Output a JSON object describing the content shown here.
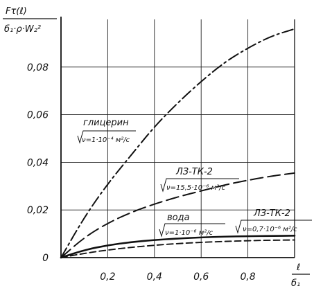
{
  "chart_data": {
    "type": "line",
    "ylabel": {
      "numerator": "Fτ(ℓ)",
      "denominator": "б₁·ρ·W₂²"
    },
    "xlabel": {
      "numerator": "ℓ",
      "denominator": "б₁"
    },
    "xlim": [
      0,
      1.0
    ],
    "ylim": [
      0,
      0.1
    ],
    "xticks": [
      "0,2",
      "0,4",
      "0,6",
      "0,8"
    ],
    "xtick_values": [
      0.2,
      0.4,
      0.6,
      0.8
    ],
    "yticks": [
      "0",
      "0,02",
      "0,04",
      "0,06",
      "0,08"
    ],
    "ytick_values": [
      0,
      0.02,
      0.04,
      0.06,
      0.08
    ],
    "grid": true,
    "series": [
      {
        "name": "глицерин",
        "sublabel": "ν=1·10⁻⁴ м²/с",
        "style": "dash-dot",
        "x": [
          0,
          0.1,
          0.2,
          0.3,
          0.4,
          0.5,
          0.6,
          0.7,
          0.8,
          0.9,
          1.0
        ],
        "y": [
          0,
          0.017,
          0.031,
          0.043,
          0.055,
          0.065,
          0.074,
          0.082,
          0.088,
          0.093,
          0.096
        ]
      },
      {
        "name": "ЛЗ-ТК-2",
        "sublabel": "ν=15,5·10⁻⁶ м²/с",
        "style": "long-dash",
        "x": [
          0,
          0.1,
          0.2,
          0.3,
          0.4,
          0.5,
          0.6,
          0.7,
          0.8,
          0.9,
          1.0
        ],
        "y": [
          0,
          0.0085,
          0.0145,
          0.019,
          0.0225,
          0.0255,
          0.028,
          0.0305,
          0.0325,
          0.0342,
          0.0355
        ]
      },
      {
        "name": "ЛЗ-ТК-2",
        "sublabel": "ν=0,7·10⁻⁶ м²/с",
        "style": "solid",
        "x": [
          0,
          0.1,
          0.2,
          0.3,
          0.4,
          0.5,
          0.6,
          0.7,
          0.8,
          0.9,
          1.0
        ],
        "y": [
          0,
          0.0032,
          0.0052,
          0.0065,
          0.0074,
          0.008,
          0.0085,
          0.0088,
          0.009,
          0.0091,
          0.0092
        ]
      },
      {
        "name": "вода",
        "sublabel": "ν=1·10⁻⁶ м²/с",
        "style": "dashed",
        "x": [
          0,
          0.1,
          0.2,
          0.3,
          0.4,
          0.5,
          0.6,
          0.7,
          0.8,
          0.9,
          1.0
        ],
        "y": [
          0,
          0.0018,
          0.0032,
          0.0043,
          0.0052,
          0.0059,
          0.0064,
          0.0068,
          0.0071,
          0.0073,
          0.0074
        ]
      }
    ]
  }
}
